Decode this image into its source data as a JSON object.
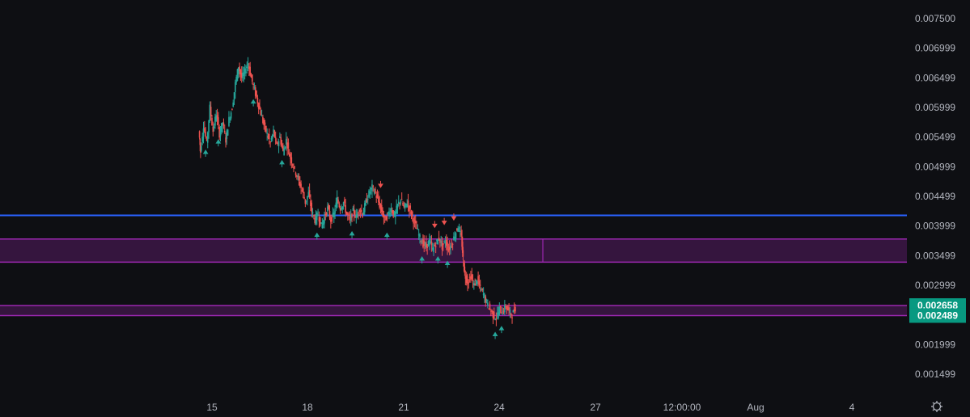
{
  "chart_data": {
    "type": "candlestick",
    "y_axis_ticks": [
      "0.007500",
      "0.006999",
      "0.006499",
      "0.005999",
      "0.005499",
      "0.004999",
      "0.004499",
      "0.003999",
      "0.003499",
      "0.002999",
      "0.001999",
      "0.001499"
    ],
    "x_axis_ticks": [
      "15",
      "18",
      "21",
      "24",
      "27",
      "12:00:00",
      "Aug",
      "4"
    ],
    "ylim": [
      0.00115,
      0.00775
    ],
    "price_badges": [
      {
        "value": "0.002658",
        "color": "#089981"
      },
      {
        "value": "0.002489",
        "color": "#089981"
      }
    ],
    "horizontal_lines": [
      {
        "price": 0.00418,
        "color": "#2962ff"
      }
    ],
    "zones": [
      {
        "from": 0.00339,
        "to": 0.00378,
        "color": "#9c27b0"
      },
      {
        "from": 0.002489,
        "to": 0.002658,
        "color": "#9c27b0"
      }
    ],
    "price_path": [
      [
        14.6,
        0.0056
      ],
      [
        14.65,
        0.00525
      ],
      [
        14.75,
        0.0057
      ],
      [
        14.85,
        0.0054
      ],
      [
        14.95,
        0.006
      ],
      [
        15.05,
        0.0056
      ],
      [
        15.15,
        0.0059
      ],
      [
        15.25,
        0.00555
      ],
      [
        15.35,
        0.00575
      ],
      [
        15.45,
        0.00545
      ],
      [
        15.55,
        0.0058
      ],
      [
        15.65,
        0.006
      ],
      [
        15.75,
        0.0064
      ],
      [
        15.85,
        0.0067
      ],
      [
        15.95,
        0.0065
      ],
      [
        16.05,
        0.0066
      ],
      [
        16.15,
        0.00675
      ],
      [
        16.25,
        0.0065
      ],
      [
        16.35,
        0.0063
      ],
      [
        16.45,
        0.0061
      ],
      [
        16.55,
        0.0059
      ],
      [
        16.65,
        0.0057
      ],
      [
        16.75,
        0.00555
      ],
      [
        16.85,
        0.0054
      ],
      [
        16.95,
        0.0056
      ],
      [
        17.05,
        0.00535
      ],
      [
        17.15,
        0.0055
      ],
      [
        17.25,
        0.00525
      ],
      [
        17.35,
        0.00545
      ],
      [
        17.45,
        0.0052
      ],
      [
        17.55,
        0.00505
      ],
      [
        17.65,
        0.0049
      ],
      [
        17.75,
        0.00475
      ],
      [
        17.85,
        0.0046
      ],
      [
        17.95,
        0.0044
      ],
      [
        18.05,
        0.00455
      ],
      [
        18.15,
        0.00425
      ],
      [
        18.25,
        0.0041
      ],
      [
        18.35,
        0.0042
      ],
      [
        18.45,
        0.004
      ],
      [
        18.55,
        0.00415
      ],
      [
        18.65,
        0.0043
      ],
      [
        18.75,
        0.0041
      ],
      [
        18.85,
        0.0042
      ],
      [
        18.95,
        0.00445
      ],
      [
        19.05,
        0.0043
      ],
      [
        19.15,
        0.0044
      ],
      [
        19.25,
        0.0042
      ],
      [
        19.35,
        0.0041
      ],
      [
        19.45,
        0.00425
      ],
      [
        19.55,
        0.00415
      ],
      [
        19.65,
        0.0043
      ],
      [
        19.75,
        0.0042
      ],
      [
        19.85,
        0.0044
      ],
      [
        19.95,
        0.00455
      ],
      [
        20.05,
        0.00465
      ],
      [
        20.15,
        0.00455
      ],
      [
        20.25,
        0.0044
      ],
      [
        20.35,
        0.00425
      ],
      [
        20.45,
        0.0041
      ],
      [
        20.55,
        0.0042
      ],
      [
        20.65,
        0.0043
      ],
      [
        20.75,
        0.00415
      ],
      [
        20.85,
        0.00435
      ],
      [
        20.95,
        0.00445
      ],
      [
        21.05,
        0.0043
      ],
      [
        21.15,
        0.0044
      ],
      [
        21.25,
        0.00425
      ],
      [
        21.35,
        0.0041
      ],
      [
        21.45,
        0.00395
      ],
      [
        21.55,
        0.0038
      ],
      [
        21.65,
        0.0037
      ],
      [
        21.75,
        0.00365
      ],
      [
        21.85,
        0.00375
      ],
      [
        21.95,
        0.0036
      ],
      [
        22.05,
        0.0037
      ],
      [
        22.15,
        0.0038
      ],
      [
        22.25,
        0.00365
      ],
      [
        22.35,
        0.00375
      ],
      [
        22.45,
        0.0036
      ],
      [
        22.55,
        0.0037
      ],
      [
        22.65,
        0.00385
      ],
      [
        22.75,
        0.004
      ],
      [
        22.85,
        0.0038
      ],
      [
        22.9,
        0.00345
      ],
      [
        22.95,
        0.0032
      ],
      [
        23.05,
        0.00305
      ],
      [
        23.15,
        0.00315
      ],
      [
        23.25,
        0.003
      ],
      [
        23.35,
        0.0031
      ],
      [
        23.45,
        0.00295
      ],
      [
        23.55,
        0.00285
      ],
      [
        23.65,
        0.0027
      ],
      [
        23.75,
        0.0026
      ],
      [
        23.85,
        0.0025
      ],
      [
        23.95,
        0.00245
      ],
      [
        24.05,
        0.0026
      ],
      [
        24.15,
        0.00255
      ],
      [
        24.25,
        0.00265
      ],
      [
        24.35,
        0.00255
      ],
      [
        24.45,
        0.0025
      ],
      [
        24.55,
        0.00262
      ]
    ],
    "up_markers": [
      14.8,
      15.2,
      16.3,
      17.2,
      18.3,
      19.4,
      20.5,
      21.6,
      22.1,
      22.4,
      23.9,
      24.1
    ],
    "down_markers": [
      20.3,
      22.0,
      22.3,
      22.6
    ],
    "grid": false
  }
}
